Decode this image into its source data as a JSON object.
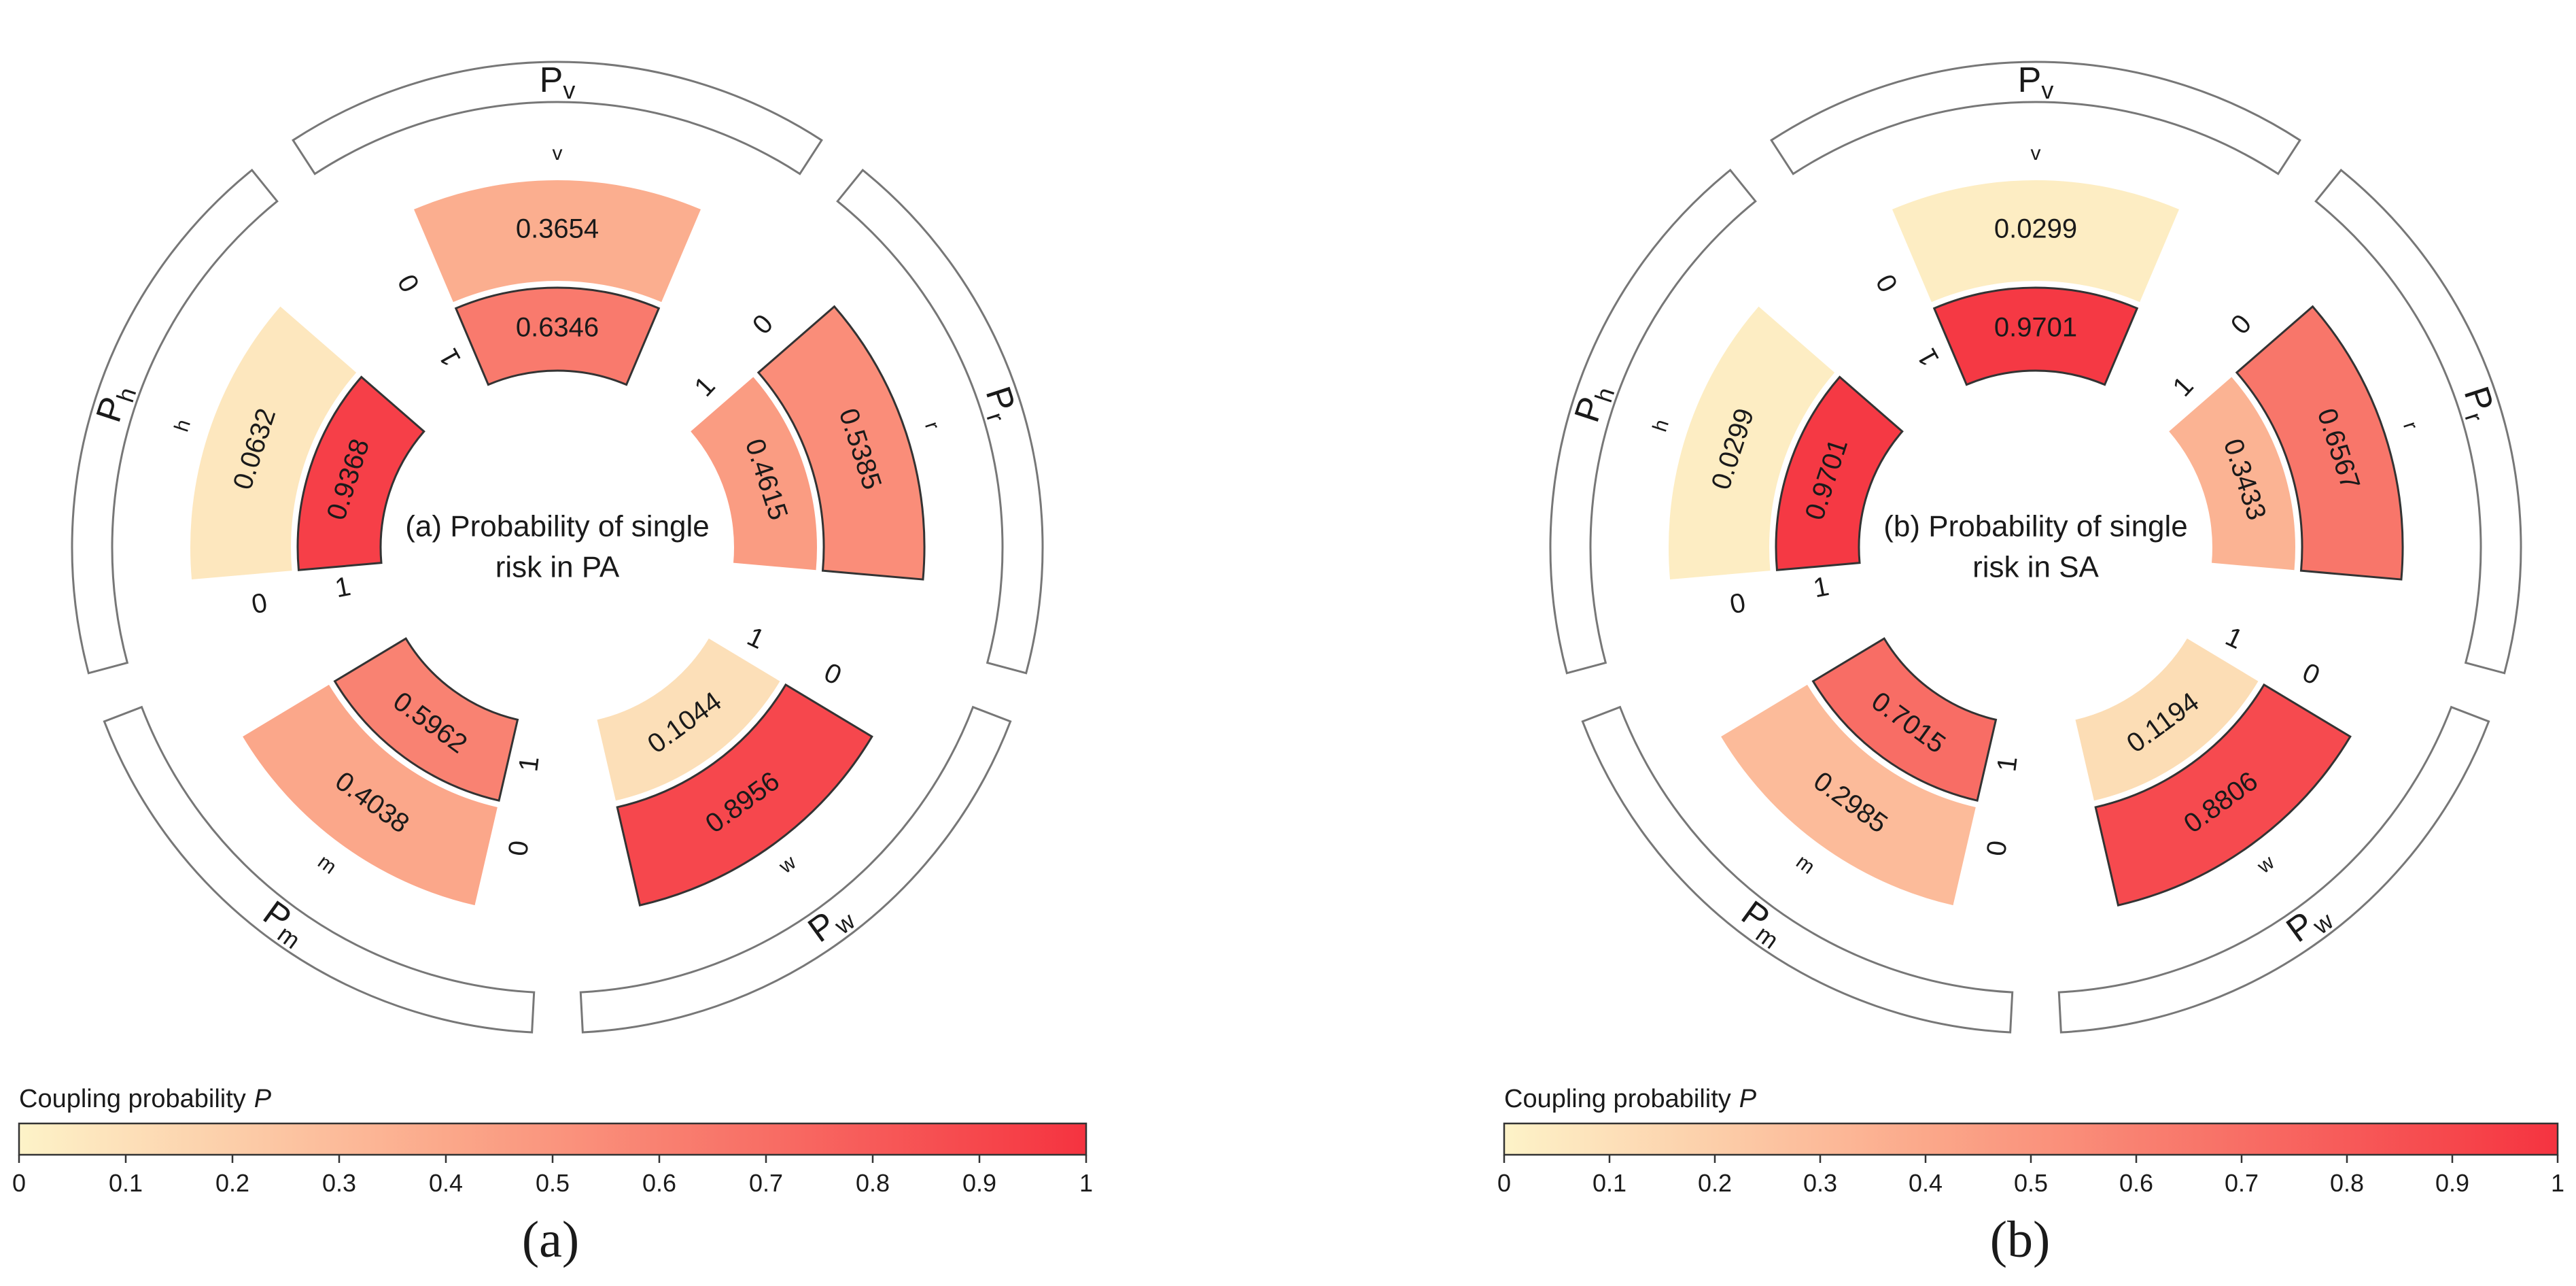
{
  "chart_data": [
    {
      "type": "radial-bar",
      "panel_label": "(a)",
      "center_title_lines": [
        "(a) Probability of single",
        "risk in PA"
      ],
      "colorbar": {
        "title": "Coupling probability",
        "title_var": "P",
        "ticks": [
          "0",
          "0.1",
          "0.2",
          "0.3",
          "0.4",
          "0.5",
          "0.6",
          "0.7",
          "0.8",
          "0.9",
          "1"
        ],
        "range": [
          0,
          1
        ],
        "color_low": "#fdf3c8",
        "color_high": "#f53340"
      },
      "groups": [
        {
          "name": "P",
          "sub": "v",
          "small_label": "v",
          "state0_label": "0",
          "state1_label": "1",
          "values": {
            "state0": 0.3654,
            "state1": 0.6346
          },
          "value_labels": {
            "state0": "0.3654",
            "state1": "0.6346"
          }
        },
        {
          "name": "P",
          "sub": "r",
          "small_label": "r",
          "state0_label": "0",
          "state1_label": "1",
          "values": {
            "state0": 0.5385,
            "state1": 0.4615
          },
          "value_labels": {
            "state0": "0.5385",
            "state1": "0.4615"
          }
        },
        {
          "name": "P",
          "sub": "w",
          "small_label": "w",
          "state0_label": "0",
          "state1_label": "1",
          "values": {
            "state0": 0.8956,
            "state1": 0.1044
          },
          "value_labels": {
            "state0": "0.8956",
            "state1": "0.1044"
          }
        },
        {
          "name": "P",
          "sub": "m",
          "small_label": "m",
          "state0_label": "0",
          "state1_label": "1",
          "values": {
            "state0": 0.4038,
            "state1": 0.5962
          },
          "value_labels": {
            "state0": "0.4038",
            "state1": "0.5962"
          }
        },
        {
          "name": "P",
          "sub": "h",
          "small_label": "h",
          "state0_label": "0",
          "state1_label": "1",
          "values": {
            "state0": 0.0632,
            "state1": 0.9368
          },
          "value_labels": {
            "state0": "0.0632",
            "state1": "0.9368"
          }
        }
      ]
    },
    {
      "type": "radial-bar",
      "panel_label": "(b)",
      "center_title_lines": [
        "(b) Probability of single",
        "risk in SA"
      ],
      "colorbar": {
        "title": "Coupling probability",
        "title_var": "P",
        "ticks": [
          "0",
          "0.1",
          "0.2",
          "0.3",
          "0.4",
          "0.5",
          "0.6",
          "0.7",
          "0.8",
          "0.9",
          "1"
        ],
        "range": [
          0,
          1
        ],
        "color_low": "#fdf3c8",
        "color_high": "#f53340"
      },
      "groups": [
        {
          "name": "P",
          "sub": "v",
          "small_label": "v",
          "state0_label": "0",
          "state1_label": "1",
          "values": {
            "state0": 0.0299,
            "state1": 0.9701
          },
          "value_labels": {
            "state0": "0.0299",
            "state1": "0.9701"
          }
        },
        {
          "name": "P",
          "sub": "r",
          "small_label": "r",
          "state0_label": "0",
          "state1_label": "1",
          "values": {
            "state0": 0.6567,
            "state1": 0.3433
          },
          "value_labels": {
            "state0": "0.6567",
            "state1": "0.3433"
          }
        },
        {
          "name": "P",
          "sub": "w",
          "small_label": "w",
          "state0_label": "0",
          "state1_label": "1",
          "values": {
            "state0": 0.8806,
            "state1": 0.1194
          },
          "value_labels": {
            "state0": "0.8806",
            "state1": "0.1194"
          }
        },
        {
          "name": "P",
          "sub": "m",
          "small_label": "m",
          "state0_label": "0",
          "state1_label": "1",
          "values": {
            "state0": 0.2985,
            "state1": 0.7015
          },
          "value_labels": {
            "state0": "0.2985",
            "state1": "0.7015"
          }
        },
        {
          "name": "P",
          "sub": "h",
          "small_label": "h",
          "state0_label": "0",
          "state1_label": "1",
          "values": {
            "state0": 0.0299,
            "state1": 0.9701
          },
          "value_labels": {
            "state0": "0.0299",
            "state1": "0.9701"
          }
        }
      ]
    }
  ]
}
